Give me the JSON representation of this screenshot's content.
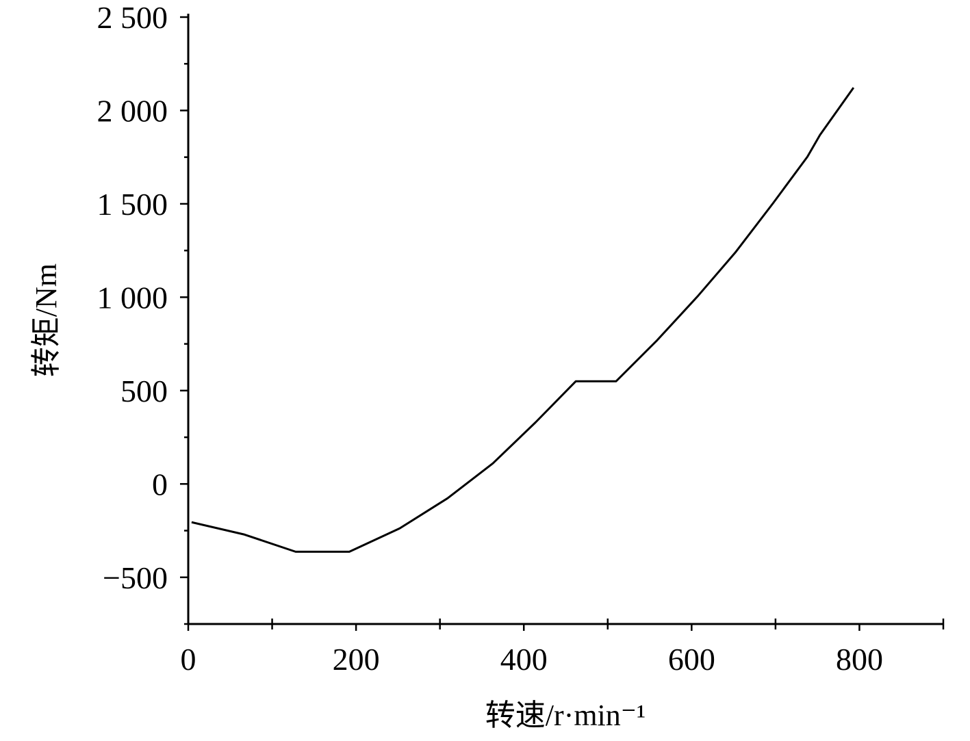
{
  "chart_data": {
    "type": "line",
    "title": "",
    "xlabel": "转速/r·min⁻¹",
    "ylabel": "转矩/Nm",
    "xlim": [
      0,
      900
    ],
    "ylim": [
      -750,
      2500
    ],
    "xticks": [
      0,
      200,
      400,
      600,
      800
    ],
    "xtick_labels": [
      "0",
      "200",
      "400",
      "600",
      "800"
    ],
    "yticks": [
      -500,
      0,
      500,
      1000,
      1500,
      2000,
      2500
    ],
    "ytick_labels": [
      "−500",
      "0",
      "500",
      "1 000",
      "1 500",
      "2 000",
      "2 500"
    ],
    "x_minor_step": 100,
    "y_minor_step": 250,
    "grid": false,
    "line_color": "#000000",
    "series": [
      {
        "x": [
          4,
          67,
          128,
          192,
          252,
          309,
          363,
          414,
          462,
          510,
          559,
          607,
          652,
          697,
          738,
          753,
          793
        ],
        "y": [
          -205,
          -271,
          -363,
          -363,
          -238,
          -77,
          110,
          330,
          550,
          550,
          770,
          1004,
          1239,
          1503,
          1752,
          1869,
          2122
        ]
      }
    ]
  }
}
